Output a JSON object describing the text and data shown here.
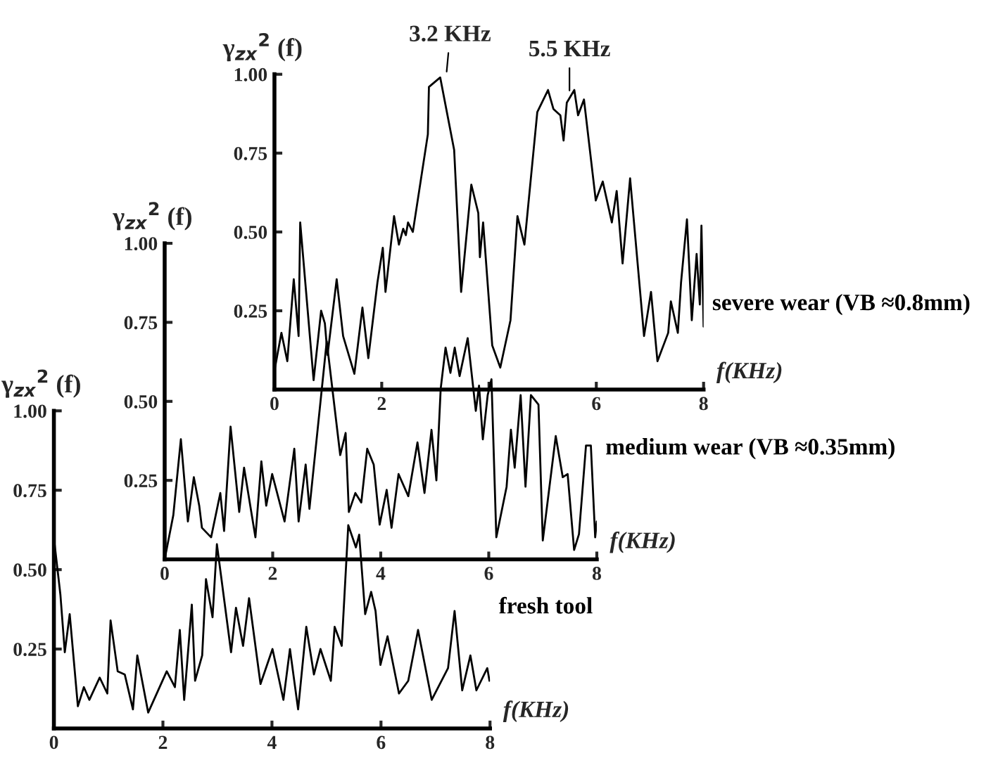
{
  "chart_data": [
    {
      "type": "line",
      "xlabel": "f(KHz)",
      "ylabel": "γ$_{zx}$$^{2}$ (f)",
      "xlim": [
        0,
        8
      ],
      "ylim": [
        0,
        1
      ],
      "xticks": [
        0,
        2,
        {
          "value": 4,
          "label": null
        },
        6,
        8
      ],
      "yticks": [
        {
          "value": 0.25,
          "label": "0.25"
        },
        {
          "value": 0.5,
          "label": "0.50"
        },
        {
          "value": 0.75,
          "label": "0.75"
        },
        {
          "value": 1,
          "label": "1.00"
        }
      ],
      "grid": false,
      "line_style": "solid",
      "marker": "none",
      "annotations": [
        {
          "text": "3.2 KHz",
          "x": 3.2,
          "y": 0.99
        },
        {
          "text": "5.5 KHz",
          "x": 5.5,
          "y": 0.93
        }
      ],
      "series": [
        {
          "name": "severe wear (VB ≈0.8mm)",
          "color": "#000000",
          "x": [
            0,
            0.13,
            0.24,
            0.36,
            0.45,
            0.48,
            0.73,
            0.87,
            0.94,
            0.99,
            1.16,
            1.28,
            1.49,
            1.64,
            1.75,
            1.92,
            2.02,
            2.07,
            2.23,
            2.32,
            2.4,
            2.45,
            2.49,
            2.58,
            2.86,
            2.88,
            3.09,
            3.35,
            3.48,
            3.67,
            3.8,
            3.83,
            3.89,
            4.06,
            4.21,
            4.4,
            4.53,
            4.66,
            4.9,
            5.1,
            5.2,
            5.33,
            5.39,
            5.45,
            5.59,
            5.66,
            5.77,
            5.99,
            6.12,
            6.29,
            6.38,
            6.49,
            6.63,
            6.89,
            7.02,
            7.14,
            7.34,
            7.39,
            7.52,
            7.58,
            7.69,
            7.78,
            7.87,
            7.93,
            7.96,
            8.0
          ],
          "values": [
            0.06,
            0.18,
            0.09,
            0.35,
            0.17,
            0.53,
            0.03,
            0.25,
            0.21,
            0.11,
            0.35,
            0.17,
            0.05,
            0.26,
            0.1,
            0.34,
            0.45,
            0.31,
            0.55,
            0.46,
            0.51,
            0.49,
            0.53,
            0.5,
            0.81,
            0.96,
            0.99,
            0.76,
            0.31,
            0.65,
            0.56,
            0.42,
            0.53,
            0.14,
            0.07,
            0.22,
            0.55,
            0.46,
            0.88,
            0.95,
            0.89,
            0.87,
            0.79,
            0.91,
            0.95,
            0.87,
            0.92,
            0.6,
            0.66,
            0.53,
            0.63,
            0.4,
            0.67,
            0.17,
            0.31,
            0.09,
            0.18,
            0.28,
            0.18,
            0.34,
            0.54,
            0.22,
            0.43,
            0.27,
            0.52,
            0.2
          ]
        }
      ]
    },
    {
      "type": "line",
      "xlabel": "f(KHz)",
      "ylabel": "γ$_{zx}$$^{2}$ (f)",
      "xlim": [
        0,
        8
      ],
      "ylim": [
        0,
        1
      ],
      "xticks": [
        0,
        2,
        4,
        6,
        8
      ],
      "yticks": [
        {
          "value": 0.25,
          "label": "0.25"
        },
        {
          "value": 0.5,
          "label": "0.50"
        },
        {
          "value": 0.75,
          "label": "0.75"
        },
        {
          "value": 1,
          "label": "1.00"
        }
      ],
      "grid": false,
      "line_style": "solid",
      "marker": "none",
      "series": [
        {
          "name": "medium wear (VB ≈0.35mm)",
          "color": "#000000",
          "x": [
            0,
            0.16,
            0.3,
            0.43,
            0.54,
            0.64,
            0.69,
            0.86,
            1.03,
            1.1,
            1.22,
            1.38,
            1.47,
            1.68,
            1.79,
            1.88,
            1.99,
            2.22,
            2.4,
            2.48,
            2.61,
            2.68,
            3.0,
            3.25,
            3.35,
            3.41,
            3.53,
            3.64,
            3.75,
            3.87,
            3.98,
            4.11,
            4.2,
            4.33,
            4.51,
            4.68,
            4.81,
            4.94,
            5.03,
            5.11,
            5.2,
            5.29,
            5.37,
            5.46,
            5.61,
            5.76,
            5.82,
            5.89,
            5.98,
            6.05,
            6.14,
            6.33,
            6.41,
            6.48,
            6.59,
            6.68,
            6.78,
            6.92,
            7.0,
            7.24,
            7.37,
            7.46,
            7.58,
            7.67,
            7.8,
            7.89,
            7.97,
            8.0
          ],
          "values": [
            0,
            0.14,
            0.38,
            0.12,
            0.26,
            0.17,
            0.1,
            0.07,
            0.21,
            0.09,
            0.42,
            0.15,
            0.29,
            0.07,
            0.31,
            0.17,
            0.27,
            0.12,
            0.35,
            0.12,
            0.3,
            0.16,
            0.69,
            0.33,
            0.4,
            0.15,
            0.21,
            0.18,
            0.35,
            0.3,
            0.11,
            0.22,
            0.1,
            0.27,
            0.2,
            0.37,
            0.21,
            0.41,
            0.25,
            0.54,
            0.67,
            0.59,
            0.67,
            0.58,
            0.7,
            0.47,
            0.55,
            0.38,
            0.52,
            0.57,
            0.07,
            0.23,
            0.41,
            0.29,
            0.52,
            0.23,
            0.52,
            0.49,
            0.06,
            0.39,
            0.26,
            0.27,
            0.03,
            0.08,
            0.36,
            0.36,
            0.07,
            0.12
          ]
        }
      ]
    },
    {
      "type": "line",
      "xlabel": "f(KHz)",
      "ylabel": "γ$_{zx}$$^{2}$ (f)",
      "xlim": [
        0,
        8
      ],
      "ylim": [
        0,
        1
      ],
      "xticks": [
        0,
        2,
        4,
        6,
        8
      ],
      "yticks": [
        {
          "value": 0.25,
          "label": "0.25"
        },
        {
          "value": 0.5,
          "label": "0.50"
        },
        {
          "value": 0.75,
          "label": "0.75"
        },
        {
          "value": 1,
          "label": "1.00"
        }
      ],
      "grid": false,
      "line_style": "solid",
      "marker": "none",
      "series": [
        {
          "name": "fresh tool",
          "color": "#000000",
          "x": [
            0,
            0.12,
            0.2,
            0.29,
            0.44,
            0.55,
            0.65,
            0.84,
            0.98,
            1.04,
            1.17,
            1.3,
            1.45,
            1.53,
            1.73,
            2.07,
            2.22,
            2.31,
            2.39,
            2.53,
            2.59,
            2.72,
            2.79,
            2.91,
            2.99,
            3.25,
            3.34,
            3.47,
            3.58,
            3.79,
            4.01,
            4.21,
            4.33,
            4.48,
            4.63,
            4.77,
            4.89,
            5.08,
            5.15,
            5.28,
            5.4,
            5.54,
            5.6,
            5.71,
            5.82,
            5.9,
            5.99,
            6.12,
            6.33,
            6.5,
            6.68,
            6.93,
            7.23,
            7.35,
            7.49,
            7.64,
            7.75,
            7.95,
            7.99
          ],
          "values": [
            0.6,
            0.42,
            0.24,
            0.36,
            0.07,
            0.13,
            0.09,
            0.16,
            0.11,
            0.34,
            0.18,
            0.17,
            0.06,
            0.23,
            0.05,
            0.18,
            0.13,
            0.31,
            0.09,
            0.39,
            0.15,
            0.23,
            0.47,
            0.35,
            0.58,
            0.24,
            0.38,
            0.26,
            0.41,
            0.14,
            0.25,
            0.09,
            0.25,
            0.06,
            0.32,
            0.17,
            0.25,
            0.15,
            0.32,
            0.26,
            0.64,
            0.57,
            0.61,
            0.36,
            0.43,
            0.37,
            0.2,
            0.29,
            0.11,
            0.15,
            0.31,
            0.09,
            0.19,
            0.37,
            0.12,
            0.23,
            0.12,
            0.19,
            0.15
          ]
        }
      ]
    }
  ]
}
